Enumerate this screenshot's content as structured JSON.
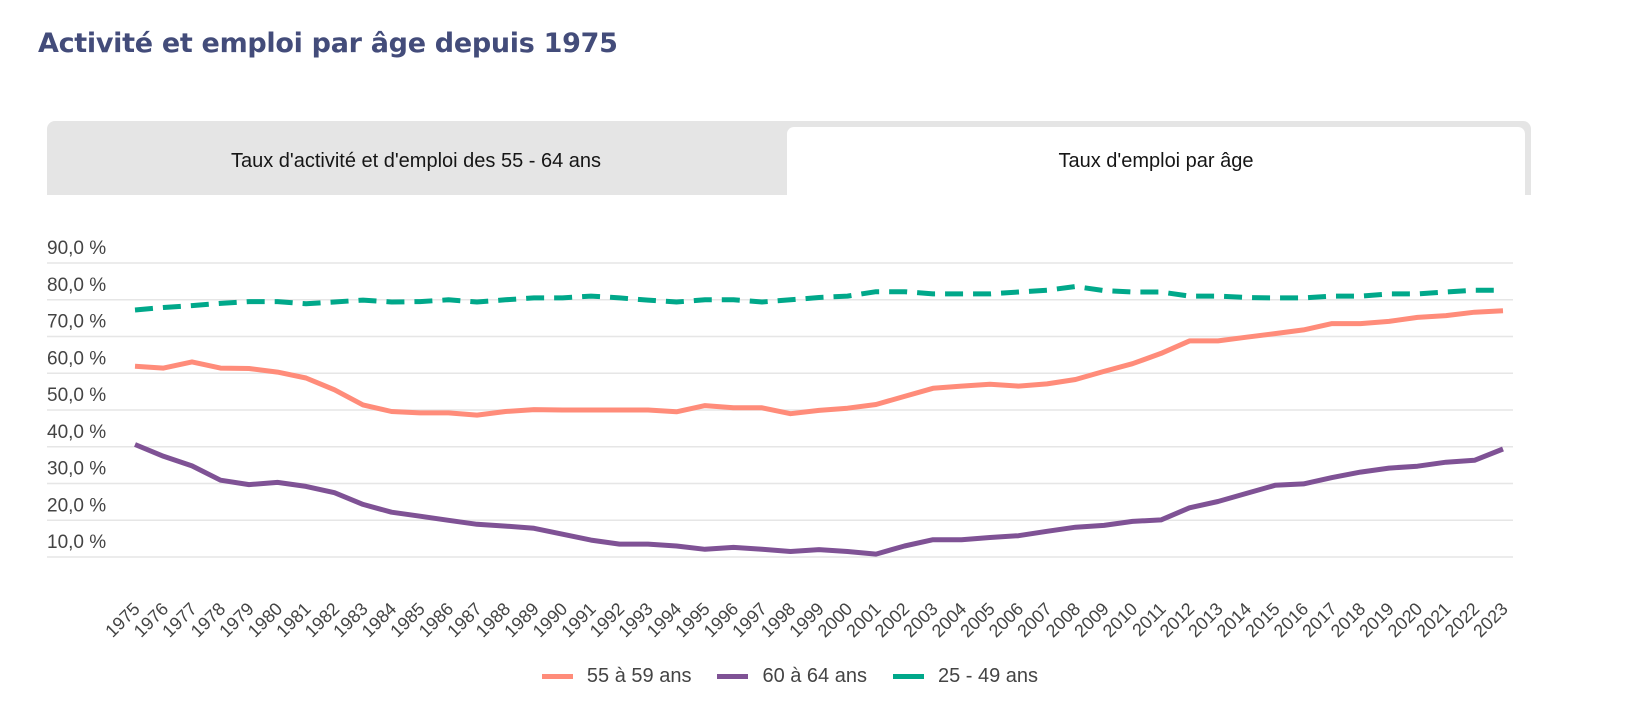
{
  "page": {
    "title": "Activité et emploi par âge depuis 1975"
  },
  "tabs": [
    {
      "label": "Taux d'activité et d'emploi des 55 - 64 ans",
      "active": false
    },
    {
      "label": "Taux d'emploi par âge",
      "active": true
    }
  ],
  "chart_data": {
    "type": "line",
    "title": "Taux d'emploi par âge",
    "xlabel": "",
    "ylabel": "",
    "ylim": [
      5,
      92
    ],
    "yticks": [
      10,
      20,
      30,
      40,
      50,
      60,
      70,
      80,
      90
    ],
    "ytick_labels": [
      "10,0 %",
      "20,0 %",
      "30,0 %",
      "40,0 %",
      "50,0 %",
      "60,0 %",
      "70,0 %",
      "80,0 %",
      "90,0 %"
    ],
    "grid": true,
    "legend_position": "bottom",
    "x": [
      "1975",
      "1976",
      "1977",
      "1978",
      "1979",
      "1980",
      "1981",
      "1982",
      "1983",
      "1984",
      "1985",
      "1986",
      "1987",
      "1988",
      "1989",
      "1990",
      "1991",
      "1992",
      "1993",
      "1994",
      "1995",
      "1996",
      "1997",
      "1998",
      "1999",
      "2000",
      "2001",
      "2002",
      "2003",
      "2004",
      "2005",
      "2006",
      "2007",
      "2008",
      "2009",
      "2010",
      "2011",
      "2012",
      "2013",
      "2014",
      "2015",
      "2016",
      "2017",
      "2018",
      "2019",
      "2020",
      "2021",
      "2022",
      "2023"
    ],
    "series": [
      {
        "name": "55 à 59 ans",
        "color": "#ff8c7a",
        "dashed": false,
        "values": [
          61.9,
          61.4,
          63.1,
          61.4,
          61.3,
          60.3,
          58.7,
          55.5,
          51.4,
          49.6,
          49.2,
          49.2,
          48.6,
          49.6,
          50.1,
          50.0,
          50.0,
          50.0,
          50.0,
          49.5,
          51.2,
          50.6,
          50.6,
          49.0,
          49.9,
          50.5,
          51.5,
          53.7,
          55.9,
          56.5,
          57.0,
          56.5,
          57.1,
          58.3,
          60.5,
          62.6,
          65.4,
          68.8,
          68.8,
          69.8,
          70.8,
          71.8,
          73.5,
          73.5,
          74.1,
          75.2,
          75.7,
          76.6,
          77.0
        ]
      },
      {
        "name": "60 à 64 ans",
        "color": "#7f5295",
        "dashed": false,
        "values": [
          40.6,
          37.4,
          34.8,
          30.9,
          29.7,
          30.3,
          29.2,
          27.5,
          24.3,
          22.2,
          21.1,
          20.0,
          18.9,
          18.4,
          17.8,
          16.2,
          14.6,
          13.5,
          13.5,
          13.0,
          12.1,
          12.6,
          12.1,
          11.5,
          12.0,
          11.5,
          10.8,
          13.0,
          14.7,
          14.7,
          15.3,
          15.8,
          17.0,
          18.1,
          18.6,
          19.7,
          20.1,
          23.4,
          25.1,
          27.3,
          29.5,
          29.9,
          31.6,
          33.1,
          34.2,
          34.7,
          35.8,
          36.3,
          39.4
        ]
      },
      {
        "name": "25 - 49 ans",
        "color": "#00a88a",
        "dashed": true,
        "values": [
          77.2,
          77.9,
          78.4,
          79.0,
          79.5,
          79.5,
          78.9,
          79.4,
          79.9,
          79.4,
          79.5,
          80.0,
          79.4,
          80.0,
          80.5,
          80.5,
          81.0,
          80.5,
          79.9,
          79.4,
          80.0,
          80.0,
          79.4,
          80.0,
          80.6,
          81.0,
          82.2,
          82.2,
          81.6,
          81.6,
          81.6,
          82.1,
          82.6,
          83.6,
          82.5,
          82.1,
          82.1,
          81.0,
          81.0,
          80.6,
          80.5,
          80.5,
          81.0,
          81.0,
          81.6,
          81.6,
          82.1,
          82.6,
          82.6
        ]
      }
    ]
  }
}
